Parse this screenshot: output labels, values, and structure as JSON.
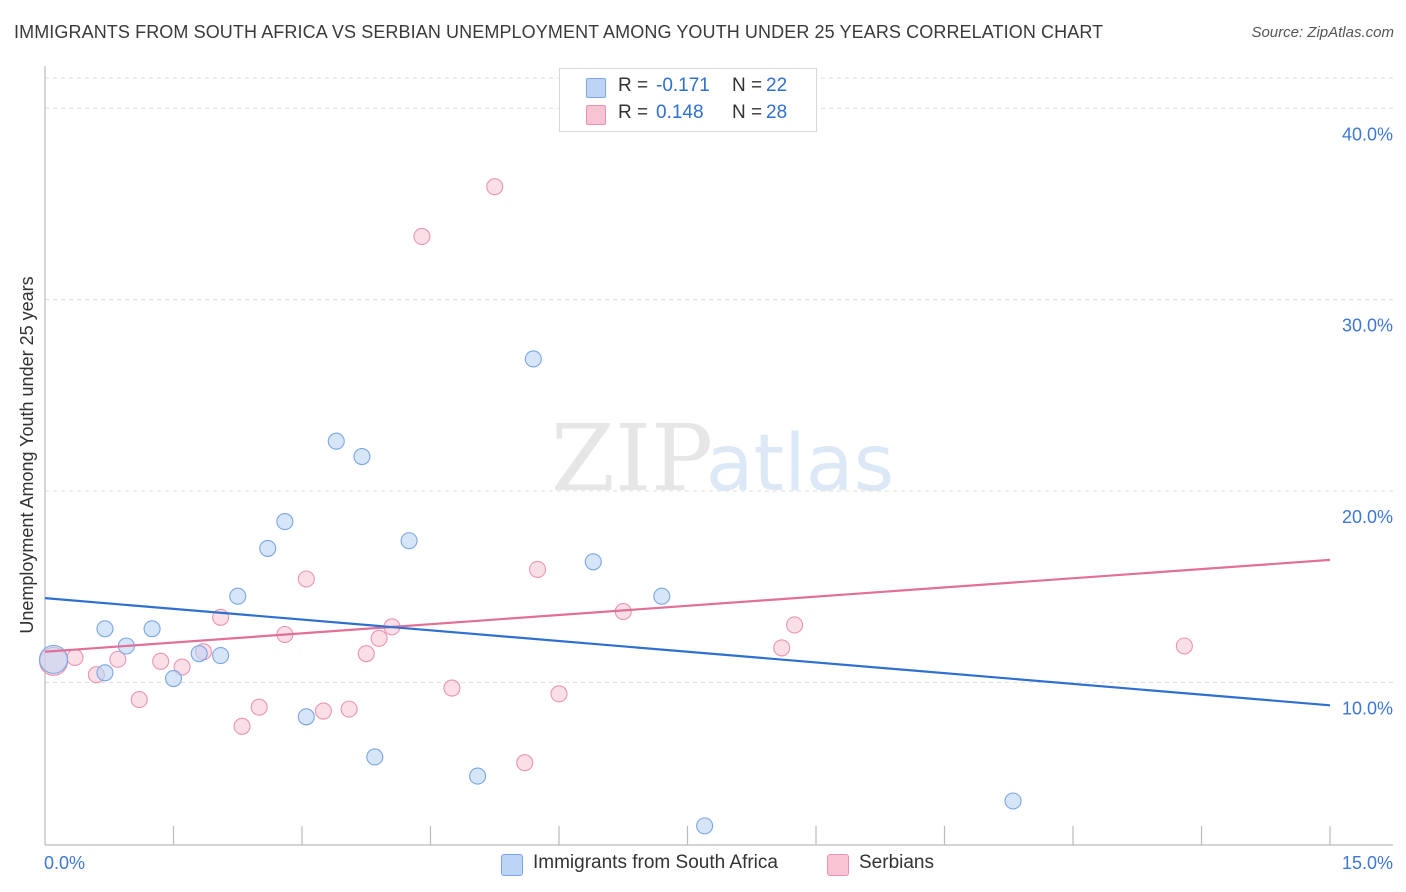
{
  "title": "IMMIGRANTS FROM SOUTH AFRICA VS SERBIAN UNEMPLOYMENT AMONG YOUTH UNDER 25 YEARS CORRELATION CHART",
  "source": "Source: ZipAtlas.com",
  "watermark": {
    "zip": "ZIP",
    "atlas": "atlas"
  },
  "legend": {
    "series1": {
      "r_label": "R =",
      "r_value": "-0.171",
      "n_label": "N =",
      "n_value": "22"
    },
    "series2": {
      "r_label": "R =",
      "r_value": "0.148",
      "n_label": "N =",
      "n_value": "28"
    }
  },
  "bottom_legend": {
    "series1": "Immigrants from South Africa",
    "series2": "Serbians"
  },
  "colors": {
    "series1_fill": "#bcd4f5",
    "series1_stroke": "#7aa6e6",
    "series1_line": "#2f6fd0",
    "series2_fill": "#f8c4d4",
    "series2_stroke": "#eb94b1",
    "series2_line": "#e07098",
    "axis_label": "#3f77d4",
    "grid": "#dddddd"
  },
  "chart_data": {
    "type": "scatter",
    "title": "IMMIGRANTS FROM SOUTH AFRICA VS SERBIAN UNEMPLOYMENT AMONG YOUTH UNDER 25 YEARS CORRELATION CHART",
    "xlabel": "",
    "ylabel": "Unemployment Among Youth under 25 years",
    "xlim": [
      0,
      15
    ],
    "ylim": [
      1.5,
      42
    ],
    "x_tick_labels": [
      "0.0%",
      "15.0%"
    ],
    "y_ticks": [
      10,
      20,
      30,
      40
    ],
    "y_tick_labels": [
      "10.0%",
      "20.0%",
      "30.0%",
      "40.0%"
    ],
    "grid": true,
    "legend_position": "top-center",
    "series": [
      {
        "name": "Immigrants from South Africa",
        "r": -0.171,
        "n": 22,
        "points": [
          [
            0.1,
            11.2
          ],
          [
            0.7,
            10.5
          ],
          [
            0.7,
            12.8
          ],
          [
            0.95,
            11.9
          ],
          [
            1.25,
            12.8
          ],
          [
            1.5,
            10.2
          ],
          [
            1.8,
            11.5
          ],
          [
            2.05,
            11.4
          ],
          [
            2.25,
            14.5
          ],
          [
            2.6,
            17.0
          ],
          [
            2.8,
            18.4
          ],
          [
            3.05,
            8.2
          ],
          [
            3.4,
            22.6
          ],
          [
            3.7,
            21.8
          ],
          [
            3.85,
            6.1
          ],
          [
            4.25,
            17.4
          ],
          [
            5.05,
            5.1
          ],
          [
            5.7,
            26.9
          ],
          [
            6.4,
            16.3
          ],
          [
            7.2,
            14.5
          ],
          [
            7.7,
            2.5
          ],
          [
            11.3,
            3.8
          ]
        ],
        "trend": {
          "start": [
            0,
            14.4
          ],
          "end": [
            15,
            8.8
          ]
        }
      },
      {
        "name": "Serbians",
        "r": 0.148,
        "n": 28,
        "points": [
          [
            0.1,
            11.1
          ],
          [
            0.35,
            11.3
          ],
          [
            0.6,
            10.4
          ],
          [
            0.85,
            11.2
          ],
          [
            1.1,
            9.1
          ],
          [
            1.35,
            11.1
          ],
          [
            1.6,
            10.8
          ],
          [
            1.85,
            11.6
          ],
          [
            2.05,
            13.4
          ],
          [
            2.3,
            7.7
          ],
          [
            2.5,
            8.7
          ],
          [
            2.8,
            12.5
          ],
          [
            3.05,
            15.4
          ],
          [
            3.25,
            8.5
          ],
          [
            3.55,
            8.6
          ],
          [
            3.75,
            11.5
          ],
          [
            3.9,
            12.3
          ],
          [
            4.05,
            12.9
          ],
          [
            4.4,
            33.3
          ],
          [
            4.75,
            9.7
          ],
          [
            5.25,
            35.9
          ],
          [
            5.6,
            5.8
          ],
          [
            5.75,
            15.9
          ],
          [
            6.0,
            9.4
          ],
          [
            6.75,
            13.7
          ],
          [
            8.6,
            11.8
          ],
          [
            8.75,
            13.0
          ],
          [
            13.3,
            11.9
          ]
        ],
        "trend": {
          "start": [
            0,
            11.6
          ],
          "end": [
            15,
            16.4
          ]
        }
      }
    ]
  }
}
